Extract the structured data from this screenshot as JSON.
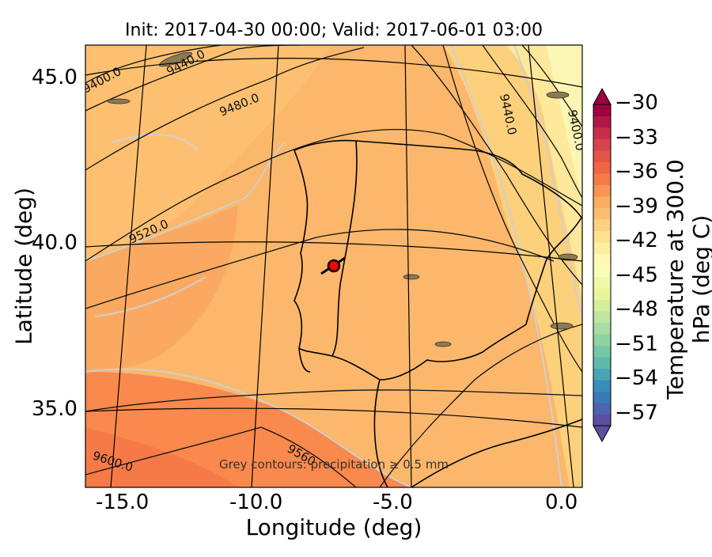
{
  "title": "Init: 2017-04-30 00:00; Valid: 2017-06-01 03:00",
  "xlabel": "Longitude (deg)",
  "ylabel": "Latitude (deg)",
  "x_ticks": [
    "-15.0",
    "-10.0",
    "-5.0",
    "0.0"
  ],
  "y_ticks": [
    "45.0",
    "40.0",
    "35.0"
  ],
  "colorbar": {
    "label": "Temperature at 300.0 hPa (deg C)",
    "ticks": [
      "−30",
      "−33",
      "−36",
      "−39",
      "−42",
      "−45",
      "−48",
      "−51",
      "−54",
      "−57"
    ],
    "range": [
      -58,
      -30
    ],
    "colors": [
      "#5e4fa2",
      "#3288bd",
      "#66c2a5",
      "#abdda4",
      "#e6f598",
      "#ffffbf",
      "#fee08b",
      "#fdae61",
      "#f46d43",
      "#d53e4f",
      "#9e0142"
    ]
  },
  "contours": {
    "labels": [
      "9400.0",
      "9440.0",
      "9480.0",
      "9520.0",
      "9560",
      "9600.0",
      "9440.0",
      "9400.0"
    ],
    "units": "geopotential height"
  },
  "annotation": "Grey contours: precipitation ≥ 0.5 mm",
  "marker": {
    "lon": -7.6,
    "lat": 39.4,
    "color": "#ff0000"
  },
  "chart_data": {
    "type": "heatmap",
    "title": "Init: 2017-04-30 00:00; Valid: 2017-06-01 03:00",
    "xlabel": "Longitude (deg)",
    "ylabel": "Latitude (deg)",
    "xlim": [
      -16,
      0.3
    ],
    "ylim": [
      32.7,
      46
    ],
    "variable": "Temperature at 300.0 hPa (deg C)",
    "approx_field_range": [
      -44,
      -36
    ],
    "contour_levels": [
      9400,
      9440,
      9480,
      9520,
      9560,
      9600
    ],
    "grid": true
  }
}
